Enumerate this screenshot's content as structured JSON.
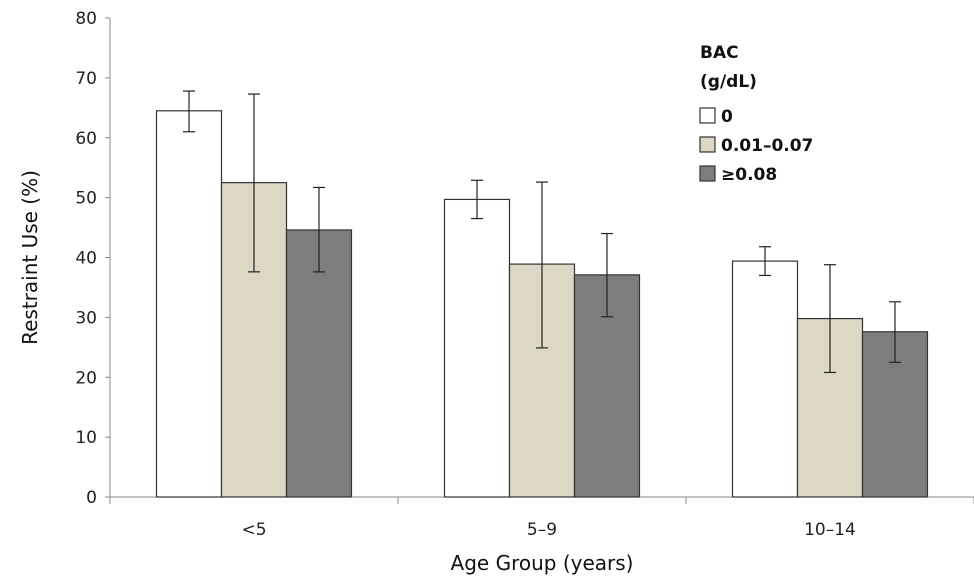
{
  "chart_data": {
    "type": "bar",
    "categories": [
      "<5",
      "5–9",
      "10–14"
    ],
    "xlabel": "Age Group (years)",
    "ylabel": "Restraint Use (%)",
    "ylim": [
      0,
      80
    ],
    "yticks": [
      0,
      10,
      20,
      30,
      40,
      50,
      60,
      70,
      80
    ],
    "grid": false,
    "legend": {
      "title_lines": [
        "BAC",
        "(g/dL)"
      ],
      "placement": "top-right"
    },
    "series": [
      {
        "name": "0",
        "color": "#ffffff",
        "values": [
          64.5,
          49.7,
          39.4
        ],
        "error_low": [
          61.0,
          46.5,
          37.0
        ],
        "error_high": [
          67.8,
          52.9,
          41.8
        ]
      },
      {
        "name": "0.01–0.07",
        "color": "#ddd8c5",
        "values": [
          52.5,
          38.9,
          29.8
        ],
        "error_low": [
          37.6,
          24.9,
          20.8
        ],
        "error_high": [
          67.3,
          52.6,
          38.8
        ]
      },
      {
        "name": "≥0.08",
        "color": "#7d7d7d",
        "values": [
          44.6,
          37.1,
          27.6
        ],
        "error_low": [
          37.6,
          30.1,
          22.5
        ],
        "error_high": [
          51.7,
          44.0,
          32.6
        ]
      }
    ]
  }
}
